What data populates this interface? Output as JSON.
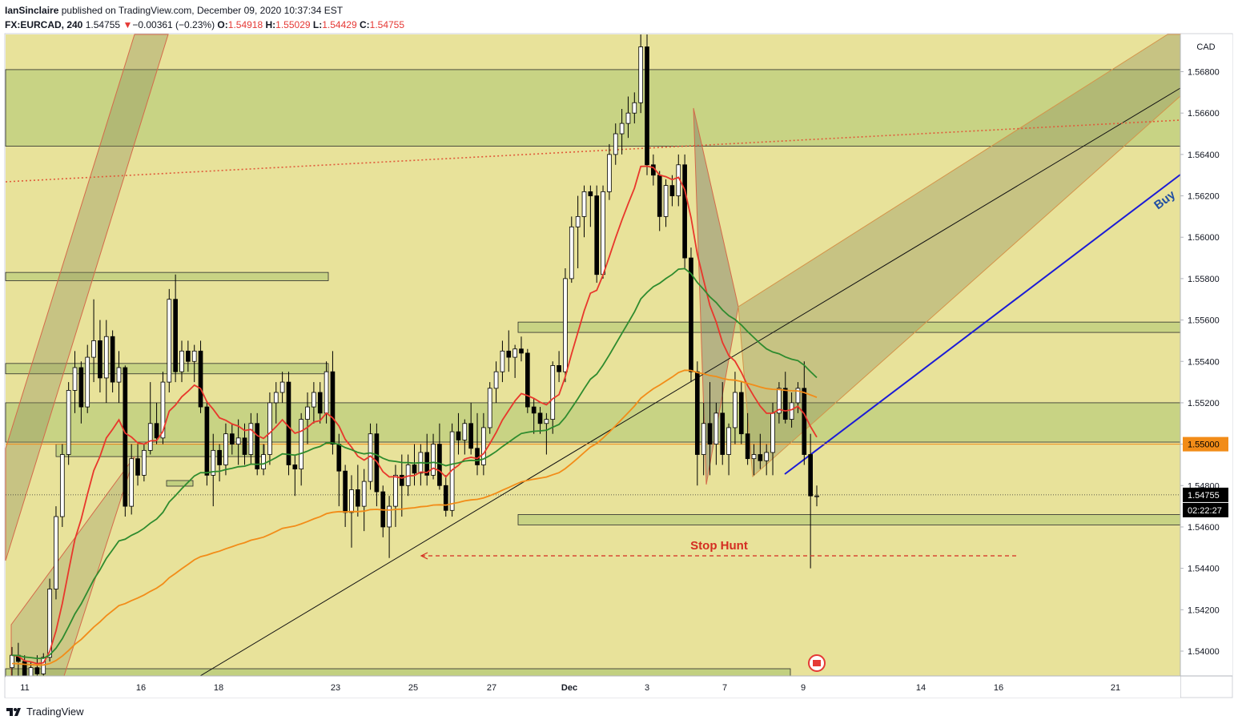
{
  "header": {
    "author": "IanSinclaire",
    "published_text": "published on TradingView.com, December 09, 2020 10:37:34 EST",
    "symbol": "FX:EURCAD, 240",
    "last": "1.54755",
    "change_arrow": "▼",
    "change": "−0.00361 (−0.23%)",
    "o_label": "O:",
    "o": "1.54918",
    "h_label": "H:",
    "h": "1.55029",
    "l_label": "L:",
    "l": "1.54429",
    "c_label": "C:",
    "c": "1.54755"
  },
  "footer": {
    "brand": "TradingView",
    "logo_icon": "tradingview-logo-icon"
  },
  "chart_data": {
    "type": "candlestick",
    "currency": "CAD",
    "ylim": [
      1.5388,
      1.5698
    ],
    "y_ticks": [
      "1.56800",
      "1.56600",
      "1.56400",
      "1.56200",
      "1.56000",
      "1.55800",
      "1.55600",
      "1.55400",
      "1.55200",
      "1.55000",
      "1.54800",
      "1.54600",
      "1.54400",
      "1.54200",
      "1.54000"
    ],
    "x_ticks": [
      "11",
      "16",
      "18",
      "23",
      "25",
      "27",
      "Dec",
      "3",
      "7",
      "9",
      "14",
      "16",
      "21"
    ],
    "price_badge": "1.55000",
    "last_price_badge": "1.54755",
    "countdown_badge": "02:22:27",
    "annotations": {
      "stop_hunt": "Stop Hunt",
      "buy": "Buy"
    },
    "colors": {
      "background": "#e8e29a",
      "up": "#ffffff",
      "down": "#000000",
      "ema_fast": "#e8372c",
      "ema_mid": "#2e8b2e",
      "ema_slow": "#f28c18",
      "trendline_buy": "#1b1bd6",
      "stop_hunt": "#d42d22",
      "zone": "#c2d080"
    },
    "zones": [
      {
        "from": 1.5644,
        "to": 1.5681
      },
      {
        "from": 1.5501,
        "to": 1.552
      },
      {
        "from": 1.5554,
        "to": 1.5559
      },
      {
        "from": 1.5461,
        "to": 1.5466
      },
      {
        "from": 1.5579,
        "to": 1.5583
      },
      {
        "from": 1.5534,
        "to": 1.5539
      },
      {
        "from": 1.5494,
        "to": 1.55
      }
    ],
    "candles": [
      [
        1.5392,
        1.5402,
        1.5385,
        1.5398
      ],
      [
        1.5398,
        1.5404,
        1.5388,
        1.5395
      ],
      [
        1.5395,
        1.5398,
        1.538,
        1.5383
      ],
      [
        1.5383,
        1.5395,
        1.5378,
        1.5392
      ],
      [
        1.5392,
        1.5398,
        1.5383,
        1.5389
      ],
      [
        1.5389,
        1.5399,
        1.5386,
        1.5397
      ],
      [
        1.5397,
        1.5435,
        1.5395,
        1.543
      ],
      [
        1.543,
        1.547,
        1.5425,
        1.5465
      ],
      [
        1.5465,
        1.55,
        1.546,
        1.5495
      ],
      [
        1.5495,
        1.553,
        1.549,
        1.5526
      ],
      [
        1.5526,
        1.5545,
        1.5515,
        1.5537
      ],
      [
        1.5537,
        1.554,
        1.551,
        1.5518
      ],
      [
        1.5518,
        1.5548,
        1.5515,
        1.5542
      ],
      [
        1.5542,
        1.557,
        1.553,
        1.555
      ],
      [
        1.555,
        1.556,
        1.5525,
        1.5532
      ],
      [
        1.5532,
        1.556,
        1.552,
        1.5552
      ],
      [
        1.5552,
        1.5555,
        1.5525,
        1.553
      ],
      [
        1.553,
        1.5545,
        1.552,
        1.5537
      ],
      [
        1.5537,
        1.5538,
        1.5465,
        1.547
      ],
      [
        1.547,
        1.55,
        1.5466,
        1.5493
      ],
      [
        1.5493,
        1.55,
        1.548,
        1.5485
      ],
      [
        1.5485,
        1.55,
        1.5482,
        1.5497
      ],
      [
        1.5497,
        1.553,
        1.5495,
        1.551
      ],
      [
        1.551,
        1.552,
        1.55,
        1.5503
      ],
      [
        1.5503,
        1.5535,
        1.55,
        1.553
      ],
      [
        1.553,
        1.5575,
        1.5525,
        1.557
      ],
      [
        1.557,
        1.5582,
        1.553,
        1.5535
      ],
      [
        1.5535,
        1.555,
        1.553,
        1.5545
      ],
      [
        1.5545,
        1.555,
        1.5535,
        1.554
      ],
      [
        1.554,
        1.5548,
        1.553,
        1.5545
      ],
      [
        1.5545,
        1.555,
        1.5515,
        1.5518
      ],
      [
        1.5518,
        1.552,
        1.548,
        1.5485
      ],
      [
        1.5485,
        1.5505,
        1.547,
        1.5497
      ],
      [
        1.5497,
        1.55,
        1.5482,
        1.549
      ],
      [
        1.549,
        1.551,
        1.5485,
        1.5505
      ],
      [
        1.5505,
        1.551,
        1.5495,
        1.55
      ],
      [
        1.55,
        1.5512,
        1.549,
        1.5503
      ],
      [
        1.5503,
        1.551,
        1.549,
        1.5495
      ],
      [
        1.5495,
        1.5515,
        1.549,
        1.551
      ],
      [
        1.551,
        1.5515,
        1.5485,
        1.5488
      ],
      [
        1.5488,
        1.55,
        1.5485,
        1.5495
      ],
      [
        1.5495,
        1.5525,
        1.549,
        1.552
      ],
      [
        1.552,
        1.553,
        1.551,
        1.5525
      ],
      [
        1.5525,
        1.5535,
        1.552,
        1.553
      ],
      [
        1.553,
        1.5535,
        1.5485,
        1.549
      ],
      [
        1.549,
        1.5495,
        1.5475,
        1.5488
      ],
      [
        1.5488,
        1.5515,
        1.548,
        1.5512
      ],
      [
        1.5512,
        1.5525,
        1.55,
        1.5518
      ],
      [
        1.5518,
        1.553,
        1.551,
        1.5525
      ],
      [
        1.5525,
        1.553,
        1.551,
        1.5515
      ],
      [
        1.5515,
        1.554,
        1.551,
        1.5535
      ],
      [
        1.5535,
        1.5545,
        1.5495,
        1.55
      ],
      [
        1.55,
        1.5505,
        1.547,
        1.5487
      ],
      [
        1.5487,
        1.549,
        1.546,
        1.5467
      ],
      [
        1.5467,
        1.5485,
        1.545,
        1.5478
      ],
      [
        1.5478,
        1.549,
        1.5465,
        1.547
      ],
      [
        1.547,
        1.5488,
        1.5458,
        1.5482
      ],
      [
        1.5482,
        1.551,
        1.5478,
        1.5505
      ],
      [
        1.5505,
        1.551,
        1.547,
        1.5477
      ],
      [
        1.5477,
        1.548,
        1.5455,
        1.546
      ],
      [
        1.546,
        1.5475,
        1.5445,
        1.547
      ],
      [
        1.547,
        1.549,
        1.546,
        1.5485
      ],
      [
        1.5485,
        1.5495,
        1.5465,
        1.548
      ],
      [
        1.548,
        1.5495,
        1.5475,
        1.549
      ],
      [
        1.549,
        1.55,
        1.548,
        1.5486
      ],
      [
        1.5486,
        1.55,
        1.548,
        1.5496
      ],
      [
        1.5496,
        1.5505,
        1.548,
        1.5485
      ],
      [
        1.5485,
        1.5505,
        1.5483,
        1.55
      ],
      [
        1.55,
        1.551,
        1.5478,
        1.548
      ],
      [
        1.548,
        1.5485,
        1.5465,
        1.5468
      ],
      [
        1.5468,
        1.551,
        1.5465,
        1.5506
      ],
      [
        1.5506,
        1.5515,
        1.5495,
        1.5502
      ],
      [
        1.5502,
        1.5512,
        1.5495,
        1.551
      ],
      [
        1.551,
        1.552,
        1.5495,
        1.5498
      ],
      [
        1.5498,
        1.5515,
        1.5485,
        1.549
      ],
      [
        1.549,
        1.5515,
        1.5485,
        1.5508
      ],
      [
        1.5508,
        1.553,
        1.5505,
        1.5527
      ],
      [
        1.5527,
        1.554,
        1.552,
        1.5535
      ],
      [
        1.5535,
        1.555,
        1.553,
        1.5545
      ],
      [
        1.5545,
        1.5555,
        1.5535,
        1.5542
      ],
      [
        1.5542,
        1.5548,
        1.5532,
        1.5546
      ],
      [
        1.5546,
        1.5552,
        1.554,
        1.5544
      ],
      [
        1.5544,
        1.5546,
        1.5515,
        1.5518
      ],
      [
        1.5518,
        1.5522,
        1.5505,
        1.5515
      ],
      [
        1.5515,
        1.5518,
        1.5505,
        1.551
      ],
      [
        1.551,
        1.5515,
        1.5495,
        1.5512
      ],
      [
        1.5512,
        1.554,
        1.5505,
        1.5538
      ],
      [
        1.5538,
        1.5545,
        1.553,
        1.5535
      ],
      [
        1.5535,
        1.5585,
        1.553,
        1.558
      ],
      [
        1.558,
        1.561,
        1.5578,
        1.5605
      ],
      [
        1.5605,
        1.562,
        1.5585,
        1.561
      ],
      [
        1.561,
        1.5625,
        1.56,
        1.5622
      ],
      [
        1.5622,
        1.5625,
        1.5605,
        1.562
      ],
      [
        1.562,
        1.5625,
        1.5578,
        1.5582
      ],
      [
        1.5582,
        1.5625,
        1.558,
        1.5622
      ],
      [
        1.5622,
        1.5645,
        1.5618,
        1.564
      ],
      [
        1.564,
        1.5655,
        1.5635,
        1.565
      ],
      [
        1.565,
        1.5662,
        1.564,
        1.5655
      ],
      [
        1.5655,
        1.5668,
        1.5648,
        1.566
      ],
      [
        1.566,
        1.567,
        1.5655,
        1.5665
      ],
      [
        1.5665,
        1.5698,
        1.566,
        1.5692
      ],
      [
        1.5692,
        1.5698,
        1.563,
        1.5635
      ],
      [
        1.5635,
        1.564,
        1.5625,
        1.563
      ],
      [
        1.563,
        1.5632,
        1.5603,
        1.561
      ],
      [
        1.561,
        1.5628,
        1.5605,
        1.5625
      ],
      [
        1.5625,
        1.563,
        1.5615,
        1.562
      ],
      [
        1.562,
        1.564,
        1.5615,
        1.5635
      ],
      [
        1.5635,
        1.564,
        1.5585,
        1.559
      ],
      [
        1.559,
        1.5595,
        1.553,
        1.5535
      ],
      [
        1.5535,
        1.554,
        1.548,
        1.5495
      ],
      [
        1.5495,
        1.552,
        1.5485,
        1.551
      ],
      [
        1.551,
        1.553,
        1.5485,
        1.55
      ],
      [
        1.55,
        1.552,
        1.549,
        1.5515
      ],
      [
        1.5515,
        1.553,
        1.549,
        1.5495
      ],
      [
        1.5495,
        1.551,
        1.5485,
        1.5508
      ],
      [
        1.5508,
        1.5535,
        1.55,
        1.5525
      ],
      [
        1.5525,
        1.553,
        1.55,
        1.5505
      ],
      [
        1.5505,
        1.5515,
        1.549,
        1.5493
      ],
      [
        1.5493,
        1.55,
        1.5485,
        1.5495
      ],
      [
        1.5495,
        1.5505,
        1.5488,
        1.5492
      ],
      [
        1.5492,
        1.55,
        1.5485,
        1.5496
      ],
      [
        1.5496,
        1.552,
        1.5485,
        1.5515
      ],
      [
        1.5515,
        1.553,
        1.551,
        1.5527
      ],
      [
        1.5527,
        1.5535,
        1.551,
        1.5512
      ],
      [
        1.5512,
        1.5525,
        1.5508,
        1.552
      ],
      [
        1.552,
        1.553,
        1.5515,
        1.5527
      ],
      [
        1.5527,
        1.554,
        1.549,
        1.5495
      ],
      [
        1.5495,
        1.5505,
        1.544,
        1.5475
      ],
      [
        1.5475,
        1.548,
        1.547,
        1.5475
      ]
    ]
  }
}
